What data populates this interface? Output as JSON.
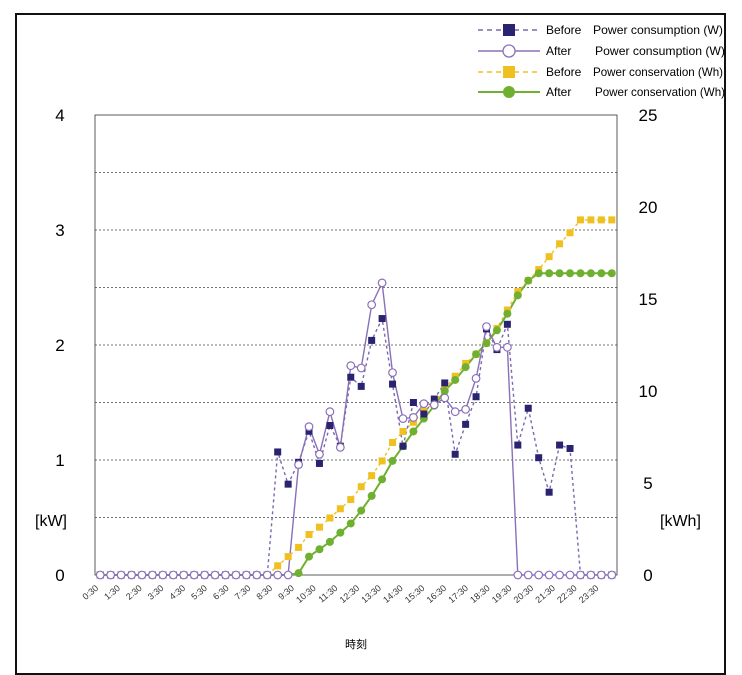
{
  "chart_data": {
    "type": "line",
    "title": "",
    "xlabel": "時刻",
    "ylabel_left": "[kW]",
    "ylabel_right": "[kWh]",
    "ylim_left": [
      0,
      4
    ],
    "ylim_right": [
      0,
      25
    ],
    "yticks_left": [
      "0",
      "1",
      "2",
      "3",
      "4"
    ],
    "yticks_right": [
      "0",
      "5",
      "10",
      "15",
      "20",
      "25"
    ],
    "x_tick_labels": [
      "0:30",
      "1:30",
      "2:30",
      "3:30",
      "4:30",
      "5:30",
      "6:30",
      "7:30",
      "8:30",
      "9:30",
      "10:30",
      "11:30",
      "12:30",
      "13:30",
      "14:30",
      "15:30",
      "16:30",
      "17:30",
      "18:30",
      "19:30",
      "20:30",
      "21:30",
      "22:30",
      "23:30"
    ],
    "grid": "horizontal dashed",
    "legend_position": "top-right",
    "series": [
      {
        "name": "Power consumption (W)",
        "prefix": "Before",
        "axis": "left",
        "color": "#2a2470",
        "line_color": "#7a68b0",
        "marker": "square",
        "dash": true,
        "values": [
          0,
          0,
          0,
          0,
          0,
          0,
          0,
          0,
          0,
          0,
          0,
          0,
          0,
          0,
          0,
          0,
          0,
          1.07,
          0.79,
          0.98,
          1.25,
          0.97,
          1.3,
          1.12,
          1.72,
          1.64,
          2.04,
          2.23,
          1.66,
          1.12,
          1.5,
          1.4,
          1.53,
          1.67,
          1.05,
          1.31,
          1.55,
          2.14,
          1.96,
          2.18,
          1.13,
          1.45,
          1.02,
          0.72,
          1.13,
          1.1,
          0,
          0,
          0,
          0
        ]
      },
      {
        "name": "Power consumption (W)",
        "prefix": "After",
        "axis": "left",
        "color": "#8a70b8",
        "line_color": "#8a70b8",
        "marker": "open-circle",
        "dash": false,
        "values": [
          0,
          0,
          0,
          0,
          0,
          0,
          0,
          0,
          0,
          0,
          0,
          0,
          0,
          0,
          0,
          0,
          0,
          0,
          0,
          0.96,
          1.29,
          1.05,
          1.42,
          1.11,
          1.82,
          1.8,
          2.35,
          2.54,
          1.76,
          1.36,
          1.37,
          1.49,
          1.48,
          1.54,
          1.42,
          1.44,
          1.71,
          2.16,
          1.98,
          1.98,
          0,
          0,
          0,
          0,
          0,
          0,
          0,
          0,
          0,
          0
        ]
      },
      {
        "name": "Power conservation (Wh)",
        "prefix": "Before",
        "axis": "right",
        "color": "#f0c020",
        "line_color": "#f0c020",
        "marker": "square",
        "dash": true,
        "values": [
          0,
          0,
          0,
          0,
          0,
          0,
          0,
          0,
          0,
          0,
          0,
          0,
          0,
          0,
          0,
          0,
          0,
          0.5,
          1,
          1.5,
          2.2,
          2.6,
          3.1,
          3.6,
          4.1,
          4.8,
          5.4,
          6.2,
          7.2,
          7.8,
          8.3,
          8.9,
          9.4,
          10.1,
          10.8,
          11.5,
          12,
          12.6,
          13.4,
          14.4,
          15.4,
          16,
          16.6,
          17.3,
          18,
          18.6,
          19.3,
          19.3,
          19.3,
          19.3
        ]
      },
      {
        "name": "Power conservation (Wh)",
        "prefix": "After",
        "axis": "right",
        "color": "#70b030",
        "line_color": "#70b030",
        "marker": "circle",
        "dash": false,
        "values": [
          0,
          0,
          0,
          0,
          0,
          0,
          0,
          0,
          0,
          0,
          0,
          0,
          0,
          0,
          0,
          0,
          0,
          0,
          0,
          0.1,
          1,
          1.4,
          1.8,
          2.3,
          2.8,
          3.5,
          4.3,
          5.2,
          6.2,
          7,
          7.8,
          8.5,
          9.2,
          10,
          10.6,
          11.3,
          12,
          12.6,
          13.3,
          14.2,
          15.2,
          16,
          16.4,
          16.4,
          16.4,
          16.4,
          16.4,
          16.4,
          16.4,
          16.4
        ]
      }
    ]
  }
}
